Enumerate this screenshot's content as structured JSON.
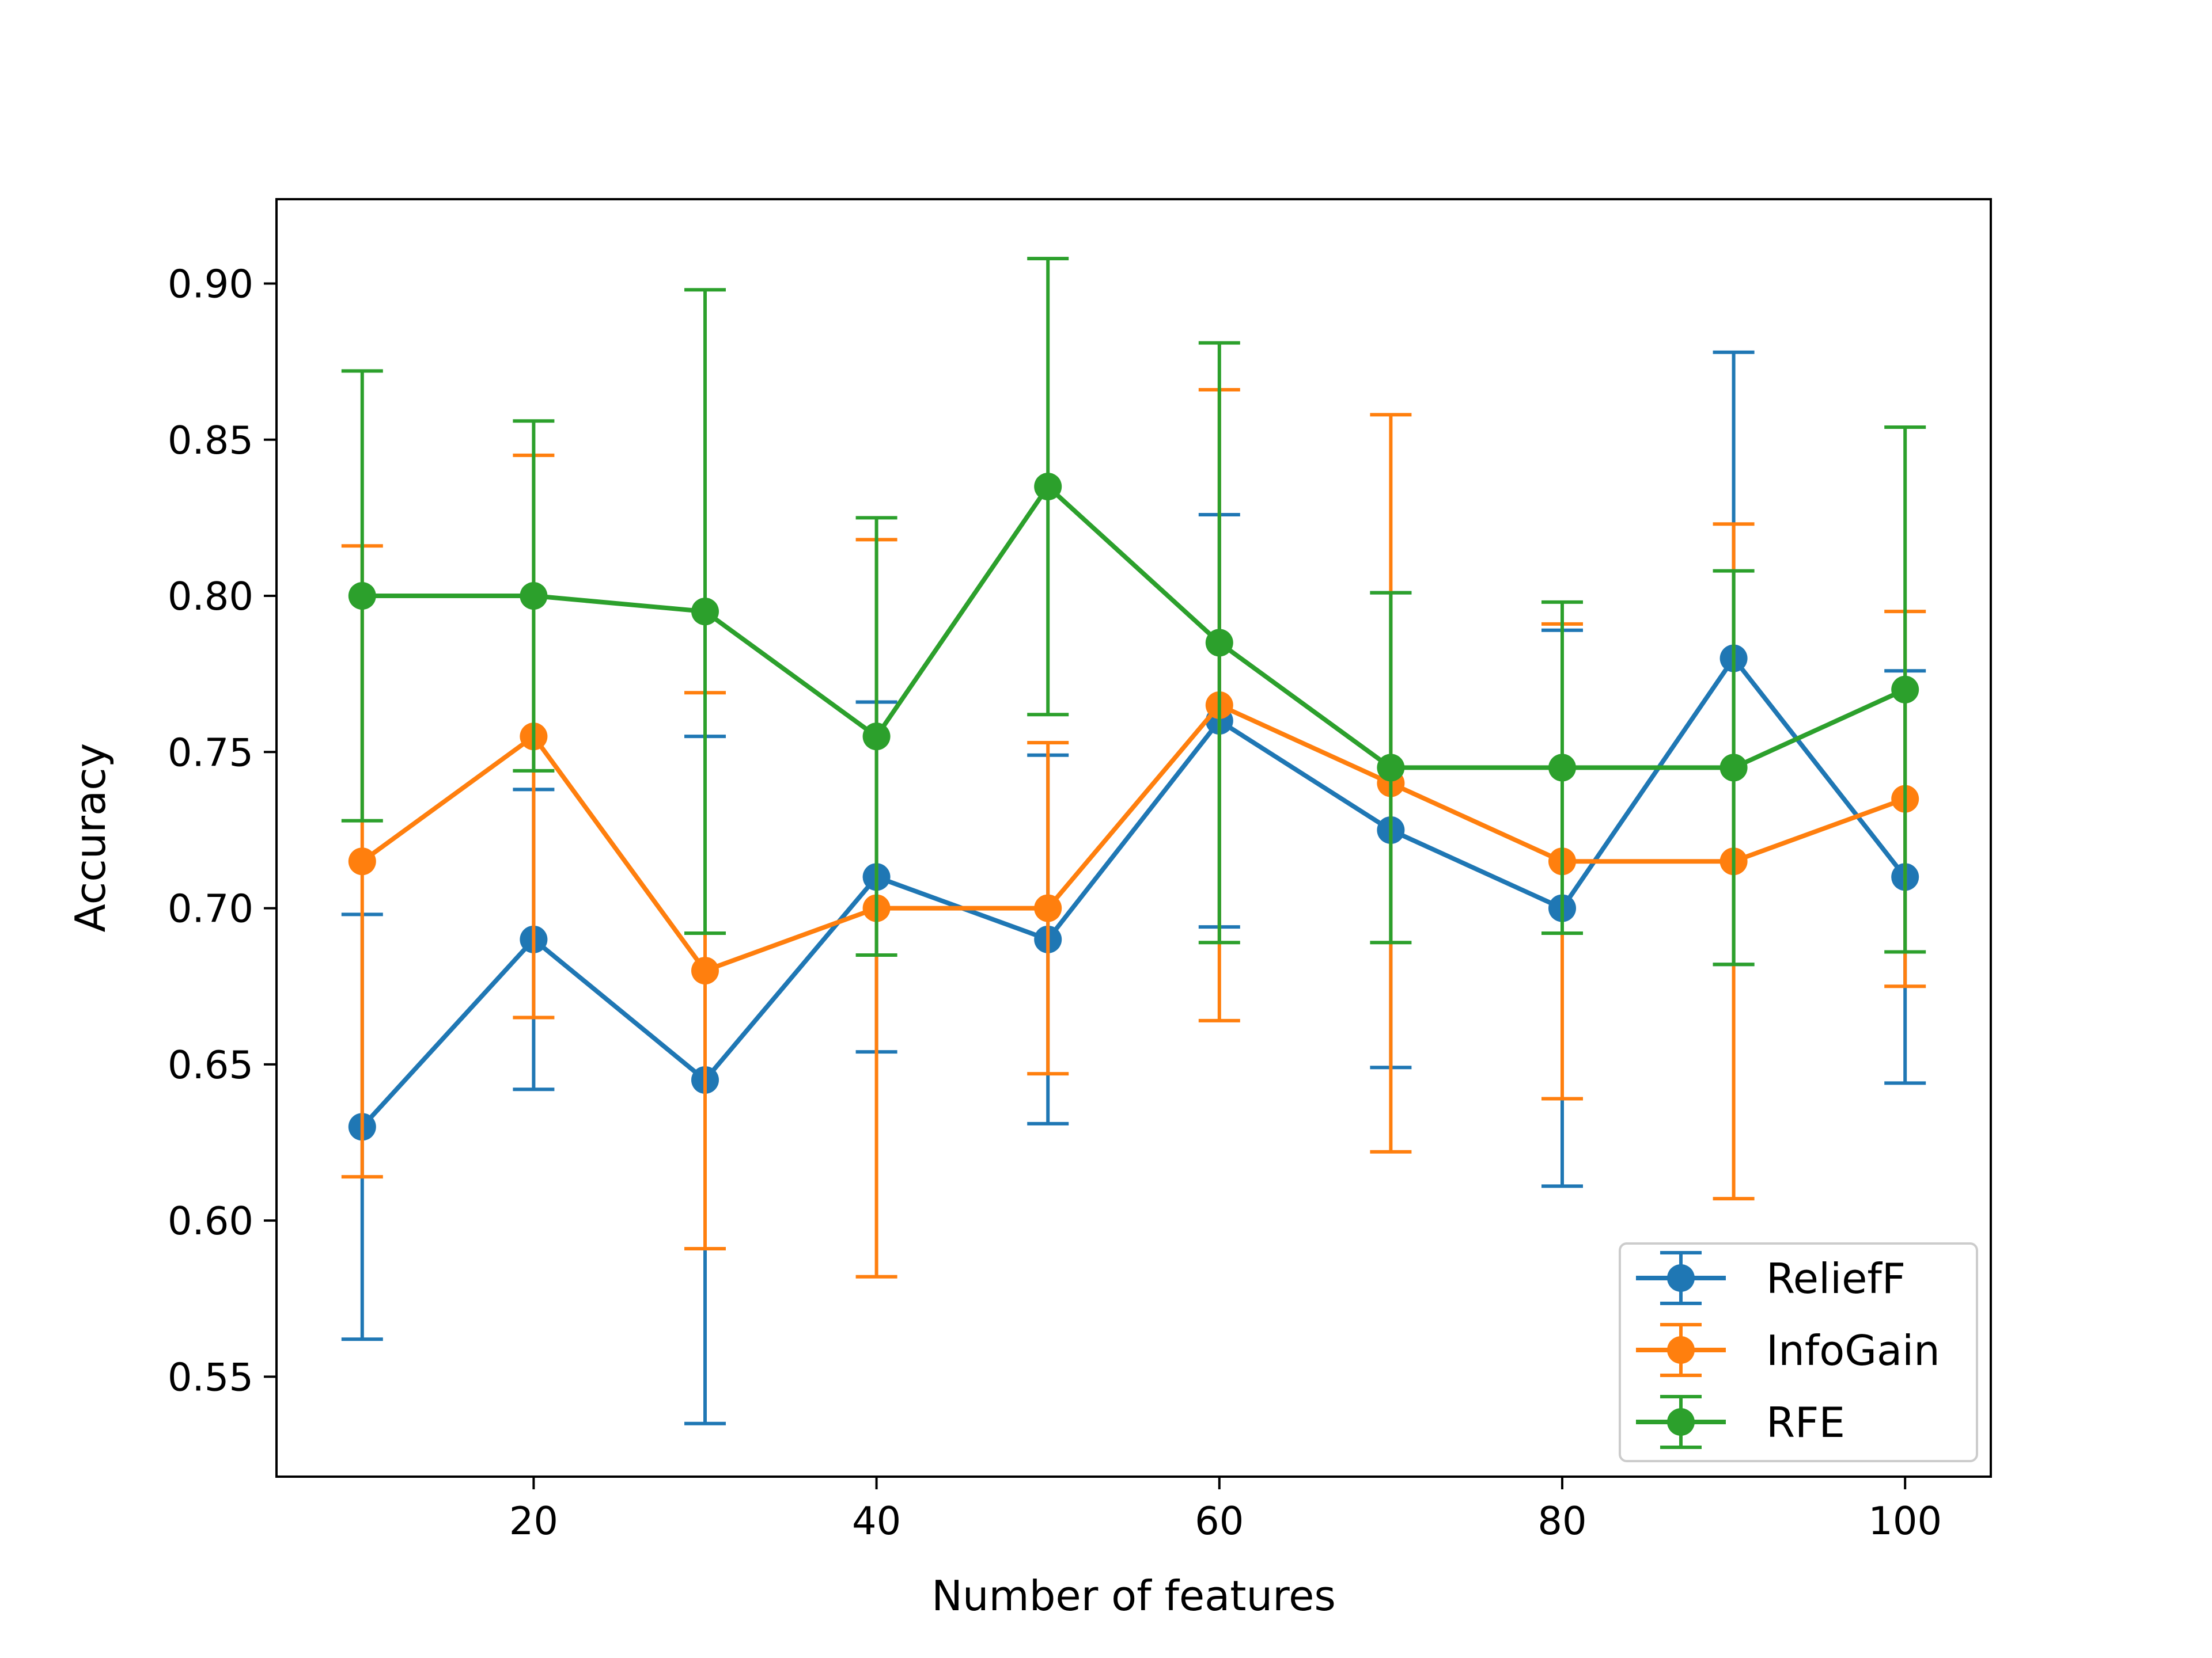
{
  "chart_data": {
    "type": "line",
    "title": "",
    "xlabel": "Number of features",
    "ylabel": "Accuracy",
    "x": [
      10,
      20,
      30,
      40,
      50,
      60,
      70,
      80,
      90,
      100
    ],
    "xlim": [
      5,
      105
    ],
    "ylim": [
      0.518,
      0.927
    ],
    "xticks": [
      "20",
      "40",
      "60",
      "80",
      "100"
    ],
    "yticks": [
      "0.55",
      "0.60",
      "0.65",
      "0.70",
      "0.75",
      "0.80",
      "0.85",
      "0.90"
    ],
    "grid": false,
    "legend_position": "lower-right",
    "series": [
      {
        "name": "ReliefF",
        "color": "#1f77b4",
        "values": [
          0.63,
          0.69,
          0.645,
          0.71,
          0.69,
          0.76,
          0.725,
          0.7,
          0.78,
          0.71
        ],
        "error": [
          0.068,
          0.048,
          0.11,
          0.056,
          0.059,
          0.066,
          0.076,
          0.089,
          0.098,
          0.066
        ]
      },
      {
        "name": "InfoGain",
        "color": "#ff7f0e",
        "values": [
          0.715,
          0.755,
          0.68,
          0.7,
          0.7,
          0.765,
          0.74,
          0.715,
          0.715,
          0.735
        ],
        "error": [
          0.101,
          0.09,
          0.089,
          0.118,
          0.053,
          0.101,
          0.118,
          0.076,
          0.108,
          0.06
        ]
      },
      {
        "name": "RFE",
        "color": "#2ca02c",
        "values": [
          0.8,
          0.8,
          0.795,
          0.755,
          0.835,
          0.785,
          0.745,
          0.745,
          0.745,
          0.77
        ],
        "error": [
          0.072,
          0.056,
          0.103,
          0.07,
          0.073,
          0.096,
          0.056,
          0.053,
          0.063,
          0.084
        ]
      }
    ]
  }
}
